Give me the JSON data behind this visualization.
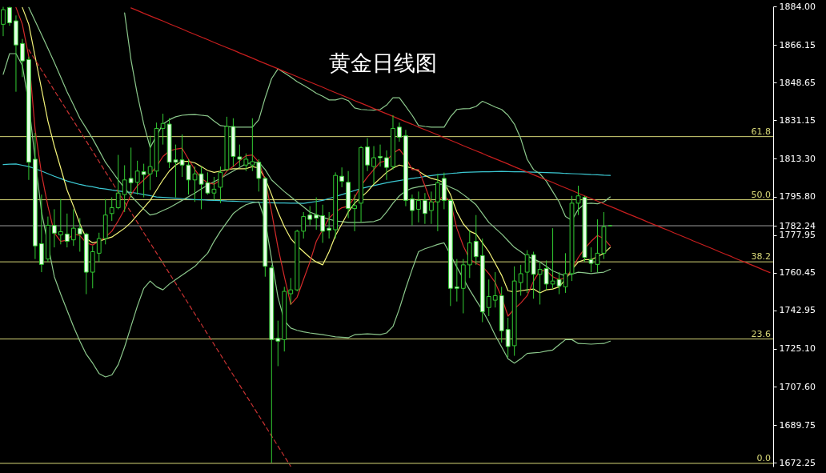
{
  "chart_data": {
    "type": "candlestick",
    "title": "黄金日线图",
    "categories": [
      null,
      null,
      null,
      null,
      null,
      null,
      null,
      null,
      null,
      null,
      null,
      null,
      null,
      null,
      null,
      null,
      null,
      null,
      null,
      null,
      null,
      null,
      null,
      null,
      null,
      null,
      null,
      null,
      null,
      null,
      null,
      null,
      null,
      null,
      null,
      null,
      null,
      null,
      null,
      null,
      null,
      null,
      null,
      null,
      null,
      null,
      null,
      null,
      null,
      null,
      null,
      null,
      null,
      null,
      null,
      null,
      null,
      null,
      null,
      null,
      null,
      null,
      null,
      null,
      null,
      null,
      null,
      null,
      null,
      null,
      null,
      null,
      null,
      null,
      null,
      null,
      null,
      null,
      null,
      null,
      null,
      null,
      null,
      null,
      null,
      null,
      null,
      null,
      null,
      null,
      null,
      null,
      null,
      null,
      null,
      null,
      null,
      null,
      null,
      null,
      null,
      null,
      null,
      null,
      null,
      null,
      null,
      null,
      null,
      null,
      null,
      null,
      null,
      null,
      null,
      null,
      null,
      null,
      null,
      null,
      null
    ],
    "color": "#33cc33",
    "ohlc": [
      [
        1875.7,
        1883.8,
        1870.2,
        1882.5
      ],
      [
        1883.5,
        1883.8,
        1875.0,
        1876.4
      ],
      [
        1877.3,
        1879.8,
        1844.4,
        1866.1
      ],
      [
        1866.8,
        1868.9,
        1851.2,
        1858.7
      ],
      [
        1859.3,
        1860.7,
        1803.5,
        1811.7
      ],
      [
        1813.1,
        1825.3,
        1766.8,
        1772.9
      ],
      [
        1773.9,
        1796.7,
        1760.7,
        1764.3
      ],
      [
        1766.8,
        1786.5,
        1765.5,
        1782.4
      ],
      [
        1782.4,
        1789.9,
        1772.2,
        1778.8
      ],
      [
        1778.0,
        1794.7,
        1773.6,
        1779.5
      ],
      [
        1778.4,
        1787.9,
        1772.2,
        1775.0
      ],
      [
        1775.7,
        1789.9,
        1772.9,
        1781.1
      ],
      [
        1781.1,
        1785.8,
        1770.2,
        1778.4
      ],
      [
        1778.4,
        1779.0,
        1750.5,
        1760.7
      ],
      [
        1760.7,
        1772.9,
        1753.2,
        1770.2
      ],
      [
        1769.5,
        1779.0,
        1765.5,
        1776.3
      ],
      [
        1776.3,
        1794.7,
        1773.6,
        1787.2
      ],
      [
        1787.9,
        1795.4,
        1784.5,
        1790.6
      ],
      [
        1790.6,
        1815.1,
        1789.9,
        1797.4
      ],
      [
        1796.7,
        1810.3,
        1788.6,
        1803.5
      ],
      [
        1804.2,
        1818.5,
        1795.4,
        1802.2
      ],
      [
        1802.4,
        1812.4,
        1796.7,
        1807.6
      ],
      [
        1807.3,
        1811.0,
        1795.4,
        1806.0
      ],
      [
        1806.3,
        1824.0,
        1798.8,
        1809.7
      ],
      [
        1807.6,
        1830.1,
        1804.9,
        1827.4
      ],
      [
        1827.4,
        1834.2,
        1819.9,
        1829.7
      ],
      [
        1829.4,
        1832.1,
        1809.0,
        1811.7
      ],
      [
        1812.8,
        1819.9,
        1795.4,
        1811.7
      ],
      [
        1812.8,
        1824.6,
        1804.9,
        1810.4
      ],
      [
        1810.4,
        1813.1,
        1796.7,
        1803.5
      ],
      [
        1803.5,
        1809.7,
        1793.3,
        1806.3
      ],
      [
        1806.3,
        1809.7,
        1789.9,
        1801.5
      ],
      [
        1802.2,
        1807.0,
        1796.7,
        1797.4
      ],
      [
        1797.4,
        1804.9,
        1794.0,
        1799.2
      ],
      [
        1800.1,
        1809.7,
        1792.7,
        1807.0
      ],
      [
        1808.3,
        1832.8,
        1807.6,
        1828.3
      ],
      [
        1828.3,
        1832.1,
        1809.7,
        1814.4
      ],
      [
        1814.2,
        1819.9,
        1809.7,
        1813.1
      ],
      [
        1810.4,
        1815.8,
        1807.6,
        1813.1
      ],
      [
        1810.4,
        1832.1,
        1807.6,
        1812.0
      ],
      [
        1811.7,
        1813.1,
        1798.1,
        1804.2
      ],
      [
        1804.2,
        1804.9,
        1758.6,
        1763.4
      ],
      [
        1762.7,
        1764.1,
        1672.3,
        1729.4
      ],
      [
        1730.0,
        1738.2,
        1717.1,
        1728.7
      ],
      [
        1729.4,
        1753.9,
        1723.9,
        1751.8
      ],
      [
        1750.7,
        1758.0,
        1745.7,
        1752.5
      ],
      [
        1752.5,
        1780.4,
        1751.8,
        1779.7
      ],
      [
        1779.7,
        1788.6,
        1776.3,
        1786.5
      ],
      [
        1787.2,
        1791.3,
        1782.4,
        1785.2
      ],
      [
        1787.2,
        1795.4,
        1780.4,
        1785.8
      ],
      [
        1786.9,
        1792.0,
        1774.3,
        1779.7
      ],
      [
        1781.1,
        1788.6,
        1776.3,
        1780.1
      ],
      [
        1780.4,
        1807.0,
        1776.3,
        1805.6
      ],
      [
        1805.2,
        1809.3,
        1800.1,
        1802.9
      ],
      [
        1802.4,
        1807.6,
        1785.8,
        1790.2
      ],
      [
        1790.2,
        1796.7,
        1779.7,
        1791.6
      ],
      [
        1792.7,
        1819.2,
        1783.8,
        1818.5
      ],
      [
        1818.8,
        1822.9,
        1807.6,
        1810.4
      ],
      [
        1809.7,
        1819.2,
        1801.5,
        1813.8
      ],
      [
        1814.4,
        1819.9,
        1809.7,
        1813.8
      ],
      [
        1813.8,
        1817.2,
        1803.5,
        1809.3
      ],
      [
        1809.7,
        1833.5,
        1808.3,
        1827.4
      ],
      [
        1828.0,
        1830.1,
        1821.2,
        1823.3
      ],
      [
        1824.0,
        1826.7,
        1791.3,
        1794.0
      ],
      [
        1794.7,
        1796.7,
        1782.4,
        1789.3
      ],
      [
        1789.9,
        1798.1,
        1783.8,
        1794.0
      ],
      [
        1794.0,
        1797.4,
        1783.1,
        1787.9
      ],
      [
        1789.3,
        1798.1,
        1783.1,
        1793.3
      ],
      [
        1793.3,
        1806.3,
        1779.7,
        1802.2
      ],
      [
        1804.2,
        1806.9,
        1789.9,
        1794.0
      ],
      [
        1794.0,
        1794.7,
        1745.0,
        1753.2
      ],
      [
        1753.9,
        1766.8,
        1747.1,
        1753.2
      ],
      [
        1753.2,
        1766.8,
        1741.6,
        1764.1
      ],
      [
        1764.1,
        1780.4,
        1758.0,
        1774.3
      ],
      [
        1775.0,
        1787.2,
        1764.1,
        1767.9
      ],
      [
        1768.4,
        1776.3,
        1737.5,
        1742.3
      ],
      [
        1744.3,
        1757.3,
        1740.3,
        1749.4
      ],
      [
        1747.7,
        1760.7,
        1744.3,
        1749.8
      ],
      [
        1749.8,
        1753.9,
        1728.0,
        1733.5
      ],
      [
        1734.1,
        1739.6,
        1721.2,
        1726.2
      ],
      [
        1726.6,
        1763.4,
        1721.9,
        1756.6
      ],
      [
        1755.9,
        1764.1,
        1749.8,
        1760.0
      ],
      [
        1760.7,
        1770.9,
        1751.1,
        1768.8
      ],
      [
        1768.8,
        1770.2,
        1748.4,
        1759.7
      ],
      [
        1759.7,
        1765.5,
        1745.7,
        1762.0
      ],
      [
        1762.4,
        1766.1,
        1752.5,
        1755.2
      ],
      [
        1755.2,
        1781.1,
        1753.2,
        1756.6
      ],
      [
        1757.3,
        1760.7,
        1750.5,
        1754.3
      ],
      [
        1753.9,
        1769.5,
        1751.1,
        1760.0
      ],
      [
        1760.0,
        1796.1,
        1756.6,
        1792.7
      ],
      [
        1792.7,
        1800.8,
        1787.2,
        1796.1
      ],
      [
        1795.4,
        1796.1,
        1765.5,
        1767.5
      ],
      [
        1766.5,
        1772.2,
        1760.7,
        1764.8
      ],
      [
        1764.3,
        1785.2,
        1760.7,
        1769.5
      ],
      [
        1769.5,
        1788.6,
        1766.8,
        1781.8
      ],
      [
        1782.24,
        1782.5,
        1782.0,
        1782.24
      ],
      null,
      null,
      null,
      null,
      null,
      null,
      null,
      null,
      null,
      null,
      null,
      null,
      null,
      null,
      null,
      null,
      null,
      null,
      null,
      null,
      null,
      null,
      null,
      null,
      null
    ],
    "colors": [
      "#000000",
      "#e6ffe6",
      "#e6ffe6",
      "#e6ffe6",
      "#e6ffe6",
      "#e6ffe6",
      "#e6ffe6",
      "#000000",
      "#e6ffe6",
      "#000000",
      "#e6ffe6",
      "#000000",
      "#e6ffe6",
      "#e6ffe6",
      "#000000",
      "#000000",
      "#000000",
      "#000000",
      "#000000",
      "#000000",
      "#e6ffe6",
      "#000000",
      "#e6ffe6",
      "#000000",
      "#000000",
      "#000000",
      "#e6ffe6",
      "#e6ffe6",
      "#e6ffe6",
      "#e6ffe6",
      "#000000",
      "#e6ffe6",
      "#e6ffe6",
      "#000000",
      "#000000",
      "#000000",
      "#e6ffe6",
      "#e6ffe6",
      "#000000",
      "#000000",
      "#e6ffe6",
      "#e6ffe6",
      "#e6ffe6",
      "#e6ffe6",
      "#000000",
      "#000000",
      "#000000",
      "#000000",
      "#e6ffe6",
      "#e6ffe6",
      "#e6ffe6",
      "#e6ffe6",
      "#000000",
      "#e6ffe6",
      "#e6ffe6",
      "#000000",
      "#000000",
      "#e6ffe6",
      "#000000",
      "#e6ffe6",
      "#e6ffe6",
      "#000000",
      "#e6ffe6",
      "#e6ffe6",
      "#e6ffe6",
      "#000000",
      "#e6ffe6",
      "#000000",
      "#000000",
      "#e6ffe6",
      "#e6ffe6",
      "#e6ffe6",
      "#000000",
      "#000000",
      "#e6ffe6",
      "#e6ffe6",
      "#000000",
      "#000000",
      "#e6ffe6",
      "#e6ffe6",
      "#000000",
      "#000000",
      "#000000",
      "#e6ffe6",
      "#000000",
      "#e6ffe6",
      "#000000",
      "#e6ffe6",
      "#000000",
      "#000000",
      "#000000",
      "#e6ffe6",
      "#e6ffe6",
      "#000000",
      "#000000",
      "#33cc33",
      null,
      null,
      null,
      null,
      null,
      null,
      null,
      null,
      null,
      null,
      null,
      null,
      null,
      null,
      null,
      null,
      null,
      null,
      null,
      null,
      null,
      null,
      null,
      null,
      null
    ],
    "series": [
      {
        "type": "line",
        "color": "#3cc8d2",
        "values": [
          1810.6,
          1810.8,
          1810.9,
          1810.3,
          1809.7,
          1808.7,
          1807.6,
          1806.4,
          1805.2,
          1804.1,
          1803.0,
          1802.2,
          1801.4,
          1800.8,
          1800.3,
          1799.7,
          1799.3,
          1798.8,
          1798.4,
          1798.0,
          1797.7,
          1797.3,
          1796.7,
          1796.2,
          1795.6,
          1795.4,
          1795.2,
          1795.0,
          1794.8,
          1794.6,
          1794.4,
          1794.3,
          1794.1,
          1794.0,
          1793.9,
          1793.7,
          1793.6,
          1793.5,
          1793.4,
          1793.3,
          1793.1,
          1793.0,
          1792.9,
          1792.8,
          1792.8,
          1792.7,
          1792.7,
          1792.6,
          1793.1,
          1793.5,
          1794.0,
          1794.9,
          1795.8,
          1796.7,
          1797.6,
          1798.6,
          1799.5,
          1800.2,
          1800.9,
          1801.5,
          1802.2,
          1802.7,
          1803.2,
          1803.7,
          1804.2,
          1804.6,
          1805.1,
          1805.5,
          1805.9,
          1806.2,
          1806.5,
          1806.7,
          1807.0,
          1807.1,
          1807.2,
          1807.3,
          1807.3,
          1807.4,
          1807.5,
          1807.4,
          1807.3,
          1807.3,
          1807.2,
          1807.1,
          1807.0,
          1806.9,
          1806.8,
          1806.7,
          1806.5,
          1806.4,
          1806.3,
          1806.2,
          1806.0,
          1805.9,
          1805.7,
          1805.6,
          null,
          null,
          null,
          null,
          null,
          null,
          null,
          null,
          null,
          null,
          null,
          null,
          null,
          null,
          null,
          null,
          null,
          null,
          null,
          null,
          null,
          null,
          null,
          null,
          null
        ]
      },
      {
        "type": "line",
        "color": "#8cc88c",
        "values": [
          null,
          null,
          null,
          null,
          null,
          null,
          null,
          null,
          null,
          null,
          null,
          null,
          null,
          null,
          null,
          null,
          null,
          null,
          null,
          1881.0,
          1859.3,
          1843.0,
          1829.4,
          1818.5,
          1824.0,
          1829.4,
          1831.4,
          1832.8,
          1833.5,
          1833.7,
          1833.8,
          1833.5,
          1833.2,
          1830.8,
          1828.7,
          1828.3,
          1828.0,
          1828.0,
          1828.0,
          1828.0,
          1831.4,
          1841.6,
          1850.5,
          1855.0,
          1853.2,
          1851.2,
          1849.1,
          1847.4,
          1845.7,
          1843.7,
          1842.3,
          1840.6,
          1840.6,
          1841.4,
          1840.3,
          1836.9,
          1836.2,
          1836.0,
          1835.9,
          1836.2,
          1838.2,
          1841.6,
          1841.6,
          1837.6,
          1833.5,
          1828.7,
          1828.3,
          1828.0,
          1828.0,
          1828.0,
          1832.8,
          1836.2,
          1836.5,
          1836.6,
          1837.6,
          1840.0,
          1838.7,
          1837.3,
          1836.2,
          1833.5,
          1829.4,
          1822.6,
          1813.1,
          1808.3,
          1806.3,
          1802.9,
          1798.1,
          1793.3,
          1786.5,
          1784.8,
          1789.9,
          1792.4,
          1792.7,
          1792.4,
          1793.3,
          1795.6,
          null,
          null,
          null,
          null,
          null,
          null,
          null,
          null,
          null,
          null,
          null,
          null,
          null,
          null,
          null,
          null,
          null,
          null,
          null,
          null,
          null,
          null,
          null,
          null,
          null
        ]
      },
      {
        "type": "line",
        "color": "#8cc88c",
        "values": [
          null,
          null,
          null,
          null,
          1883.5,
          1877.2,
          1870.9,
          1864.5,
          1858.0,
          1851.2,
          1844.4,
          1838.3,
          1832.1,
          1827.4,
          1822.6,
          1817.2,
          1811.7,
          1807.6,
          1803.5,
          1799.8,
          1796.1,
          1793.0,
          1789.9,
          1787.2,
          1787.9,
          1789.3,
          1790.6,
          1792.3,
          1794.0,
          1795.7,
          1797.4,
          1799.3,
          1801.1,
          1802.7,
          1804.2,
          1805.9,
          1807.6,
          1809.3,
          1811.0,
          1811.4,
          1811.7,
          1808.3,
          1803.5,
          1800.8,
          1798.1,
          1795.7,
          1793.3,
          1791.0,
          1788.6,
          1787.4,
          1786.1,
          1785.3,
          1784.5,
          1784.2,
          1783.8,
          1783.8,
          1783.8,
          1784.0,
          1784.2,
          1785.2,
          1788.6,
          1792.7,
          1796.1,
          1798.4,
          1799.7,
          1800.3,
          1800.8,
          1801.2,
          1801.5,
          1801.5,
          1800.1,
          1798.8,
          1796.7,
          1794.4,
          1792.0,
          1787.9,
          1783.8,
          1781.1,
          1778.4,
          1775.3,
          1772.2,
          1770.2,
          1768.1,
          1766.8,
          1765.4,
          1763.4,
          1761.3,
          1760.1,
          1758.9,
          1759.8,
          1760.7,
          1760.4,
          1760.0,
          1760.4,
          1760.7,
          1762.0,
          null,
          null,
          null,
          null,
          null,
          null,
          null,
          null,
          null,
          null,
          null,
          null,
          null,
          null,
          null,
          null,
          null,
          null,
          null,
          null,
          null,
          null,
          null,
          null,
          null
        ]
      },
      {
        "type": "line",
        "color": "#8cc88c",
        "values": [
          1852.5,
          1862.1,
          1862.1,
          1856.6,
          1838.9,
          1813.1,
          1788.6,
          null,
          1758.6,
          1750.5,
          1743.0,
          1735.5,
          1728.7,
          1722.6,
          1718.5,
          1713.7,
          1712.1,
          1713.0,
          1717.8,
          1726.0,
          1735.5,
          1745.0,
          1753.2,
          1756.6,
          1753.9,
          1752.5,
          1755.2,
          1757.3,
          1759.3,
          1761.4,
          1763.4,
          1766.5,
          1769.5,
          1775.0,
          1779.7,
          1783.8,
          1787.9,
          1790.2,
          1792.0,
          1792.9,
          1793.3,
          1784.5,
          1766.8,
          1749.1,
          1738.2,
          1734.8,
          1733.7,
          1733.0,
          1732.5,
          1732.1,
          1731.7,
          1731.2,
          1730.7,
          1730.5,
          1730.3,
          1731.7,
          1731.9,
          1732.1,
          1731.9,
          1731.7,
          1732.5,
          1735.5,
          1743.7,
          1753.2,
          1762.0,
          1770.2,
          1771.6,
          1772.5,
          1773.6,
          1774.3,
          1768.8,
          1763.0,
          null,
          1752.5,
          1747.7,
          1743.0,
          1737.5,
          1731.4,
          1726.0,
          1720.5,
          1718.5,
          1720.5,
          1723.0,
          1723.3,
          1723.5,
          1724.1,
          1724.6,
          1727.0,
          1729.4,
          1729.4,
          1727.6,
          1727.5,
          1727.3,
          1727.5,
          1727.6,
          1728.7,
          null,
          null,
          null,
          null,
          null,
          null,
          null,
          null,
          null,
          null,
          null,
          null,
          null,
          null,
          null,
          null,
          null,
          null,
          null,
          null,
          null,
          null,
          null,
          null,
          null
        ]
      },
      {
        "type": "line",
        "color": "#f5f57a",
        "values": [
          null,
          null,
          null,
          1883.5,
          1875.7,
          1860.7,
          1845.7,
          1830.8,
          1819.2,
          1809.0,
          1798.8,
          1791.3,
          1783.1,
          1776.3,
          1774.3,
          1775.0,
          1776.1,
          1777.0,
          1779.0,
          1781.1,
          1783.8,
          1787.2,
          1790.6,
          1794.0,
          1798.8,
          1803.5,
          1807.6,
          1810.4,
          1812.1,
          1812.1,
          1811.4,
          1809.7,
          1807.9,
          1807.0,
          1807.6,
          1808.3,
          1808.7,
          1808.7,
          1808.7,
          1809.7,
          1809.0,
          1804.2,
          1796.7,
          1788.6,
          1781.8,
          1776.3,
          1772.9,
          1770.2,
          1767.5,
          1765.4,
          1764.1,
          1770.2,
          1777.7,
          1783.1,
          1788.6,
          1792.7,
          1795.4,
          1798.1,
          1801.5,
          1804.2,
          1807.0,
          1809.0,
          1810.4,
          1809.7,
          1809.0,
          1807.6,
          1805.6,
          1804.2,
          1803.5,
          1802.2,
          1796.7,
          1788.6,
          1783.1,
          1779.7,
          1778.4,
          1774.3,
          1770.2,
          1764.8,
          1759.3,
          1752.1,
          1751.5,
          1752.1,
          1752.5,
          1752.9,
          1751.1,
          1752.5,
          1752.9,
          1753.9,
          1757.3,
          1762.0,
          1765.4,
          1766.5,
          1766.5,
          1767.9,
          1769.5,
          1772.2,
          null,
          null,
          null,
          null,
          null,
          null,
          null,
          null,
          null,
          null,
          null,
          null,
          null,
          null,
          null,
          null,
          null,
          null,
          null,
          null,
          null,
          null,
          null,
          null,
          null
        ]
      },
      {
        "type": "line",
        "color": "#d42a2a",
        "values": [
          null,
          null,
          1883.5,
          1875.7,
          1860.7,
          1826.7,
          1806.3,
          1791.3,
          1779.0,
          1775.0,
          1775.6,
          1778.4,
          1777.7,
          1774.3,
          1773.3,
          1775.0,
          1777.0,
          1779.7,
          1784.5,
          1789.9,
          1796.7,
          1800.8,
          1803.5,
          1806.3,
          1809.7,
          1814.4,
          1816.9,
          1817.8,
          1818.2,
          1813.1,
          1808.3,
          1804.2,
          1802.2,
          1801.5,
          1803.5,
          1807.6,
          1809.7,
          1812.4,
          1814.7,
          1815.1,
          1811.7,
          1803.5,
          1788.6,
          1772.2,
          1758.6,
          1745.7,
          1749.1,
          1757.3,
          1765.4,
          1775.0,
          1780.4,
          1785.8,
          1788.6,
          1790.6,
          1791.3,
          1795.4,
          1800.8,
          1804.9,
          1808.3,
          1811.7,
          1812.4,
          1815.8,
          1817.8,
          1813.8,
          1808.3,
          1808.3,
          1800.8,
          1792.7,
          1794.0,
          1796.1,
          1793.3,
          1781.0,
          1772.9,
          1766.8,
          1764.8,
          1763.4,
          1760.0,
          1755.9,
          1749.1,
          1740.3,
          1743.7,
          1746.4,
          1749.8,
          1756.6,
          1761.4,
          1761.4,
          1758.6,
          1757.3,
          1758.0,
          1762.0,
          1767.5,
          1771.6,
          1775.0,
          1777.7,
          1776.3,
          1772.9,
          null,
          null,
          null,
          null,
          null,
          null,
          null,
          null,
          null,
          null,
          null,
          null,
          null,
          null,
          null,
          null,
          null,
          null,
          null,
          null,
          null,
          null,
          null,
          null,
          null
        ]
      },
      {
        "type": "line",
        "color": "#c81e1e",
        "values": [
          null,
          null,
          null,
          null,
          null,
          null,
          null,
          null,
          null,
          null,
          null,
          null,
          null,
          null,
          null,
          null,
          null,
          null,
          null,
          null,
          1883.3,
          1882.1,
          1880.8,
          1879.6,
          1878.4,
          1877.2,
          1875.9,
          1874.7,
          1873.5,
          1872.2,
          1871.0,
          1869.8,
          1868.6,
          1867.3,
          1866.1,
          1864.9,
          1863.7,
          1862.4,
          1861.2,
          1860.0,
          1858.7,
          1857.5,
          1856.3,
          1855.1,
          1853.8,
          1852.6,
          1851.4,
          1850.1,
          1848.9,
          1847.7,
          1846.5,
          1845.2,
          1844.0,
          1842.8,
          1841.6,
          1840.3,
          1839.1,
          1837.9,
          1836.6,
          1835.4,
          1834.2,
          1833.0,
          1831.7,
          1830.5,
          1829.3,
          1828.0,
          1826.8,
          1825.6,
          1824.4,
          1823.1,
          1821.9,
          1820.7,
          1819.4,
          1818.2,
          1817.0,
          1815.8,
          1814.5,
          1813.3,
          1812.1,
          1810.9,
          1809.6,
          1808.4,
          1807.2,
          1805.9,
          1804.7,
          1803.5,
          1802.3,
          1801.0,
          1799.8,
          1798.6,
          1797.3,
          1796.1,
          1794.9,
          1793.7,
          1792.4,
          1791.2,
          1790.0,
          1788.7,
          1787.5,
          1786.3,
          1785.1,
          1783.8,
          1782.6,
          1781.4,
          1780.2,
          1778.9,
          1777.7,
          1776.5,
          1775.2,
          1774.0,
          1772.8,
          1771.6,
          1770.3,
          1769.1,
          1767.9,
          1766.6,
          1765.4,
          1764.2,
          1763.0,
          1761.7,
          1760.5
        ]
      },
      {
        "type": "line",
        "color": "#c83232",
        "line_style": "dashed",
        "values": [
          null,
          null,
          null,
          null,
          1863.9,
          1859.2,
          1854.5,
          1849.8,
          1845.0,
          1840.3,
          1835.6,
          1830.9,
          1826.2,
          1821.5,
          1816.8,
          1812.0,
          1807.3,
          1802.6,
          1797.9,
          1793.2,
          1788.5,
          1783.8,
          1779.0,
          1774.3,
          1769.6,
          1764.9,
          1760.2,
          1755.5,
          1750.7,
          1746.0,
          1741.3,
          1736.6,
          1731.9,
          1727.2,
          1722.5,
          1717.7,
          1713.0,
          1708.3,
          1703.6,
          1698.9,
          1694.2,
          1689.5,
          1684.7,
          1680.0,
          1675.3,
          1670.6,
          null,
          null,
          null,
          null,
          null,
          null,
          null,
          null,
          null,
          null,
          null,
          null,
          null,
          null,
          null,
          null,
          null,
          null,
          null,
          null,
          null,
          null,
          null,
          null,
          null,
          null,
          null,
          null,
          null,
          null,
          null,
          null,
          null,
          null,
          null,
          null,
          null,
          null,
          null,
          null,
          null,
          null,
          null,
          null,
          null,
          null,
          null,
          null,
          null,
          null,
          null,
          null,
          null,
          null,
          null,
          null,
          null,
          null,
          null,
          null,
          null,
          null,
          null,
          null,
          null,
          null,
          null,
          null,
          null,
          null,
          null,
          null,
          null,
          null,
          null
        ]
      }
    ],
    "ref_lines": [
      {
        "axis": "y",
        "value": 1823.6,
        "color": "#d8d878"
      },
      {
        "axis": "y",
        "value": 1794.3,
        "color": "#d8d878"
      },
      {
        "axis": "y",
        "value": 1765.5,
        "color": "#d8d878"
      },
      {
        "axis": "y",
        "value": 1729.7,
        "color": "#d8d878"
      },
      {
        "axis": "y",
        "value": 1672.0,
        "color": "#d8d878"
      },
      {
        "axis": "y",
        "value": 1782.24,
        "color": "#a0a0a0"
      }
    ],
    "annotations": [
      {
        "text": "61.8",
        "y": 1823.6
      },
      {
        "text": "50.0",
        "y": 1794.3
      },
      {
        "text": "38.2",
        "y": 1765.5
      },
      {
        "text": "23.6",
        "y": 1729.7
      },
      {
        "text": "0.0",
        "y": 1672.0
      }
    ],
    "ylim": [
      1670.5,
      1884.0
    ],
    "yticks": [
      1672.25,
      1689.75,
      {
        "value": 1707.6,
        "label": "1707.60"
      },
      {
        "value": 1725.1,
        "label": "1725.10"
      },
      1742.95,
      1760.45,
      1777.95,
      1782.24,
      {
        "value": 1795.8,
        "label": "1795.80"
      },
      {
        "value": 1813.3,
        "label": "1813.30"
      },
      1831.15,
      1848.65,
      1866.15,
      {
        "value": 1884.0,
        "label": "1884.00"
      }
    ]
  }
}
